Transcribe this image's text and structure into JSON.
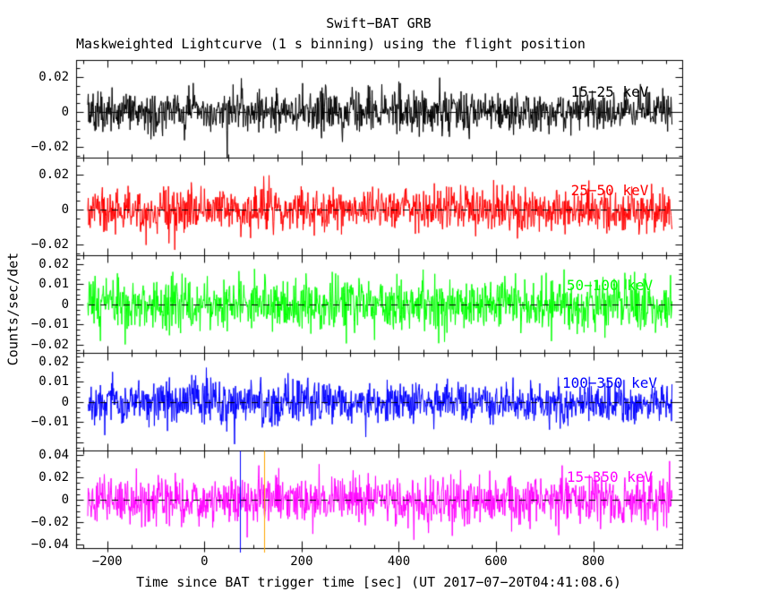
{
  "title": "Swift−BAT GRB",
  "subtitle": "Maskweighted Lightcurve (1 s binning) using the flight position",
  "xlabel": "Time since BAT trigger time [sec] (UT 2017−07−20T04:41:08.6)",
  "ylabel": "Counts/sec/det",
  "trigger_time_ut": "2017-07-20T04:41:08.6",
  "binning": "1 s",
  "colors": {
    "axis": "#000000",
    "background": "#ffffff",
    "zero_line": "#000000"
  },
  "chart_data": {
    "type": "line",
    "layout_hint": "5 stacked panels sharing one x-axis, tick marks inward on all frame edges, dashed zero line per panel",
    "x_axis": {
      "ticks": [
        -200,
        0,
        200,
        400,
        600,
        800
      ],
      "tick_labels": [
        "−200",
        "0",
        "200",
        "400",
        "600",
        "800"
      ],
      "minor_step": 50,
      "major_step": 200,
      "range": [
        -264,
        983
      ],
      "data_range": [
        -240,
        962
      ],
      "bin_width_sec": 1
    },
    "panels": [
      {
        "label": "15−25 keV",
        "color": "#000000",
        "y_ticks": [
          0.02,
          0,
          -0.02
        ],
        "y_tick_labels": [
          "0.02",
          "0",
          "−0.02"
        ],
        "ylim": [
          -0.0262,
          0.0297
        ],
        "major_step": 0.02,
        "minor_step": 0.005,
        "mean": 0,
        "noise_sigma": 0.006
      },
      {
        "label": "25−50 keV",
        "color": "#ff0000",
        "y_ticks": [
          0.02,
          0,
          -0.02
        ],
        "y_tick_labels": [
          "0.02",
          "0",
          "−0.02"
        ],
        "ylim": [
          -0.0262,
          0.0297
        ],
        "major_step": 0.02,
        "minor_step": 0.005,
        "mean": 0,
        "noise_sigma": 0.006
      },
      {
        "label": "50−100 keV",
        "color": "#00ff00",
        "y_ticks": [
          0.02,
          0.01,
          0,
          -0.01,
          -0.02
        ],
        "y_tick_labels": [
          "0.02",
          "0.01",
          "0",
          "−0.01",
          "−0.02"
        ],
        "ylim": [
          -0.024,
          0.0244
        ],
        "major_step": 0.01,
        "minor_step": 0.0025,
        "mean": 0,
        "noise_sigma": 0.0064
      },
      {
        "label": "100−350 keV",
        "color": "#0000ff",
        "y_ticks": [
          0.02,
          0.01,
          0,
          -0.01
        ],
        "y_tick_labels": [
          "0.02",
          "0.01",
          "0",
          "−0.01"
        ],
        "ylim": [
          -0.024,
          0.0244
        ],
        "major_step": 0.01,
        "minor_step": 0.0025,
        "mean": 0,
        "noise_sigma": 0.0053
      },
      {
        "label": "15−350 keV",
        "color": "#ff00ff",
        "y_ticks": [
          0.04,
          0.02,
          0,
          -0.02,
          -0.04
        ],
        "y_tick_labels": [
          "0.04",
          "0.02",
          "0",
          "−0.02",
          "−0.04"
        ],
        "ylim": [
          -0.0432,
          0.044
        ],
        "major_step": 0.02,
        "minor_step": 0.005,
        "mean": 0,
        "noise_sigma": 0.0105
      }
    ],
    "markers": [
      {
        "panel_index": 4,
        "panel": "15−350 keV",
        "time_sec": 73,
        "color": "#0000ff",
        "name": "burst-interval-start-marker"
      },
      {
        "panel_index": 4,
        "panel": "15−350 keV",
        "time_sec": 122,
        "color": "#ffa500",
        "name": "burst-interval-end-marker"
      }
    ],
    "data_character": "mask-weighted background noise fluctuating about zero in every band; no obvious burst peak visible",
    "zero_line": {
      "style": "dashed",
      "color": "#000000"
    }
  }
}
